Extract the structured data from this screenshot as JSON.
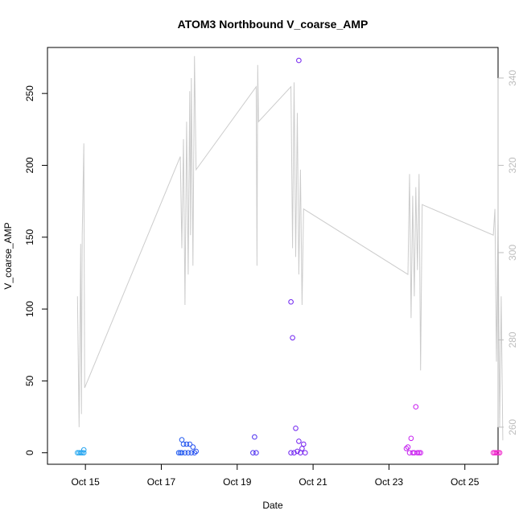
{
  "chart_data": {
    "type": "scatter",
    "title": "ATOM3 Northbound V_coarse_AMP",
    "xlabel": "Date",
    "ylabel": "V_coarse_AMP",
    "x_ticks": [
      "Oct 15",
      "Oct 17",
      "Oct 19",
      "Oct 21",
      "Oct 23",
      "Oct 25"
    ],
    "xlim": [
      "2023-10-14 00:00",
      "2023-10-25 21:00"
    ],
    "ylim": [
      -8,
      282
    ],
    "y_ticks": [
      0,
      50,
      100,
      150,
      200,
      250
    ],
    "y2lim": [
      251.5,
      347
    ],
    "y2_ticks": [
      260,
      280,
      300,
      320,
      340
    ],
    "grid": false,
    "colors": {
      "line": "#cccccc",
      "right_axis": "#bdbdbd",
      "point_gradient": [
        "#22a7f0",
        "#1e78f0",
        "#2a3cf0",
        "#6a20f0",
        "#a020f0",
        "#d420f0",
        "#f020c8"
      ]
    },
    "series": [
      {
        "role": "right-axis line (grey)",
        "points": [
          [
            "2023-10-14 19:00",
            290
          ],
          [
            "2023-10-14 20:00",
            260
          ],
          [
            "2023-10-14 21:00",
            302
          ],
          [
            "2023-10-14 21:30",
            263
          ],
          [
            "2023-10-14 22:00",
            304
          ],
          [
            "2023-10-14 23:00",
            325
          ],
          [
            "2023-10-14 23:30",
            269
          ],
          [
            "2023-10-17 12:00",
            322
          ],
          [
            "2023-10-17 13:00",
            301
          ],
          [
            "2023-10-17 14:00",
            326
          ],
          [
            "2023-10-17 15:00",
            288
          ],
          [
            "2023-10-17 16:00",
            330
          ],
          [
            "2023-10-17 17:00",
            295
          ],
          [
            "2023-10-17 18:00",
            337
          ],
          [
            "2023-10-17 18:30",
            304
          ],
          [
            "2023-10-17 19:00",
            340
          ],
          [
            "2023-10-17 20:00",
            297
          ],
          [
            "2023-10-17 21:00",
            345
          ],
          [
            "2023-10-17 22:00",
            319
          ],
          [
            "2023-10-19 12:00",
            338
          ],
          [
            "2023-10-19 12:30",
            297
          ],
          [
            "2023-10-19 13:00",
            343
          ],
          [
            "2023-10-19 13:30",
            330
          ],
          [
            "2023-10-20 10:00",
            338
          ],
          [
            "2023-10-20 11:00",
            301
          ],
          [
            "2023-10-20 12:00",
            339
          ],
          [
            "2023-10-20 13:00",
            299
          ],
          [
            "2023-10-20 14:00",
            332
          ],
          [
            "2023-10-20 15:00",
            295
          ],
          [
            "2023-10-20 16:00",
            319
          ],
          [
            "2023-10-20 17:00",
            288
          ],
          [
            "2023-10-20 18:00",
            310
          ],
          [
            "2023-10-23 12:00",
            295
          ],
          [
            "2023-10-23 13:00",
            318
          ],
          [
            "2023-10-23 14:00",
            285
          ],
          [
            "2023-10-23 15:00",
            313
          ],
          [
            "2023-10-23 16:00",
            290
          ],
          [
            "2023-10-23 17:00",
            315
          ],
          [
            "2023-10-23 18:00",
            296
          ],
          [
            "2023-10-23 19:00",
            318
          ],
          [
            "2023-10-23 20:00",
            273
          ],
          [
            "2023-10-23 21:00",
            311
          ],
          [
            "2023-10-25 18:00",
            304
          ],
          [
            "2023-10-25 19:00",
            310
          ],
          [
            "2023-10-25 20:00",
            275
          ],
          [
            "2023-10-25 21:00",
            308
          ],
          [
            "2023-10-25 22:00",
            260
          ],
          [
            "2023-10-25 23:00",
            290
          ],
          [
            "2023-10-26 00:00",
            257
          ]
        ]
      },
      {
        "role": "V_coarse_AMP points (left axis)",
        "points": [
          [
            "2023-10-14 19:00",
            0
          ],
          [
            "2023-10-14 20:00",
            0
          ],
          [
            "2023-10-14 21:00",
            0
          ],
          [
            "2023-10-14 22:00",
            0
          ],
          [
            "2023-10-14 23:00",
            0
          ],
          [
            "2023-10-14 23:00",
            2
          ],
          [
            "2023-10-17 11:00",
            0
          ],
          [
            "2023-10-17 12:00",
            0
          ],
          [
            "2023-10-17 13:00",
            0
          ],
          [
            "2023-10-17 13:00",
            9
          ],
          [
            "2023-10-17 14:00",
            6
          ],
          [
            "2023-10-17 15:00",
            0
          ],
          [
            "2023-10-17 16:00",
            6
          ],
          [
            "2023-10-17 17:00",
            0
          ],
          [
            "2023-10-17 18:00",
            6
          ],
          [
            "2023-10-17 19:00",
            0
          ],
          [
            "2023-10-17 20:00",
            4
          ],
          [
            "2023-10-17 21:00",
            0
          ],
          [
            "2023-10-17 22:00",
            1
          ],
          [
            "2023-10-19 10:00",
            0
          ],
          [
            "2023-10-19 11:00",
            11
          ],
          [
            "2023-10-19 12:00",
            0
          ],
          [
            "2023-10-20 10:00",
            105
          ],
          [
            "2023-10-20 10:00",
            0
          ],
          [
            "2023-10-20 11:00",
            80
          ],
          [
            "2023-10-20 12:00",
            0
          ],
          [
            "2023-10-20 13:00",
            17
          ],
          [
            "2023-10-20 14:00",
            1
          ],
          [
            "2023-10-20 15:00",
            273
          ],
          [
            "2023-10-20 15:00",
            8
          ],
          [
            "2023-10-20 16:00",
            0
          ],
          [
            "2023-10-20 17:00",
            3
          ],
          [
            "2023-10-20 18:00",
            6
          ],
          [
            "2023-10-20 19:00",
            0
          ],
          [
            "2023-10-23 11:00",
            3
          ],
          [
            "2023-10-23 12:00",
            4
          ],
          [
            "2023-10-23 13:00",
            0
          ],
          [
            "2023-10-23 14:00",
            10
          ],
          [
            "2023-10-23 15:00",
            0
          ],
          [
            "2023-10-23 16:00",
            0
          ],
          [
            "2023-10-23 17:00",
            32
          ],
          [
            "2023-10-23 18:00",
            0
          ],
          [
            "2023-10-23 19:00",
            0
          ],
          [
            "2023-10-23 20:00",
            0
          ],
          [
            "2023-10-25 18:00",
            0
          ],
          [
            "2023-10-25 19:00",
            0
          ],
          [
            "2023-10-25 20:00",
            0
          ],
          [
            "2023-10-25 21:00",
            0
          ],
          [
            "2023-10-25 22:00",
            0
          ]
        ]
      }
    ]
  }
}
